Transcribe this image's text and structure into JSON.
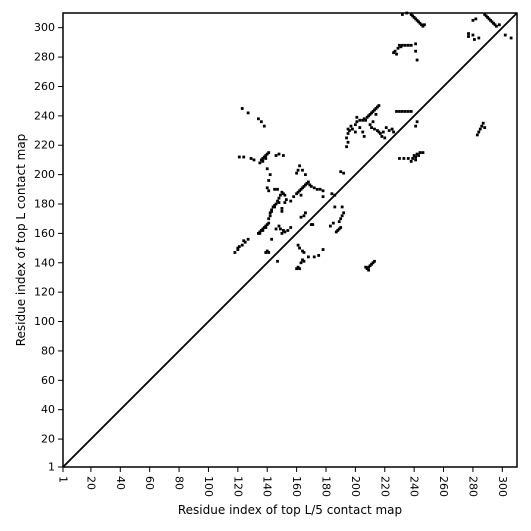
{
  "chart_data": {
    "type": "scatter",
    "xlabel": "Residue index of top L/5 contact map",
    "ylabel": "Residue index of top L contact map",
    "xlim": [
      1,
      310
    ],
    "ylim": [
      1,
      310
    ],
    "x_ticks": [
      1,
      20,
      40,
      60,
      80,
      100,
      120,
      140,
      160,
      180,
      200,
      220,
      240,
      260,
      280,
      300
    ],
    "y_ticks": [
      1,
      20,
      40,
      60,
      80,
      100,
      120,
      140,
      160,
      180,
      200,
      220,
      240,
      260,
      280,
      300
    ],
    "x_tick_labels": [
      "1",
      "20",
      "40",
      "60",
      "80",
      "100",
      "120",
      "140",
      "160",
      "180",
      "200",
      "220",
      "240",
      "260",
      "280",
      "300"
    ],
    "y_tick_labels": [
      "1",
      "20",
      "40",
      "60",
      "80",
      "100",
      "120",
      "140",
      "160",
      "180",
      "200",
      "220",
      "240",
      "260",
      "280",
      "300"
    ],
    "x_tick_rotation": "vertical",
    "diagonal": [
      [
        1,
        1
      ],
      [
        310,
        310
      ]
    ],
    "grid": false,
    "marker_color": "#000000",
    "series": [
      {
        "values": [
          [
            134,
            160
          ],
          [
            135,
            161
          ],
          [
            136,
            162
          ],
          [
            137,
            163
          ],
          [
            138,
            164
          ],
          [
            139,
            165
          ],
          [
            140,
            166
          ],
          [
            139,
            164
          ],
          [
            137,
            162
          ],
          [
            135,
            160
          ],
          [
            141,
            167
          ],
          [
            141,
            170
          ],
          [
            142,
            172
          ],
          [
            142,
            174
          ],
          [
            143,
            176
          ],
          [
            144,
            178
          ],
          [
            145,
            179
          ],
          [
            146,
            180
          ],
          [
            145,
            178
          ],
          [
            143,
            175
          ],
          [
            147,
            182
          ],
          [
            148,
            184
          ],
          [
            149,
            186
          ],
          [
            150,
            188
          ],
          [
            151,
            187
          ],
          [
            152,
            186
          ],
          [
            136,
            210
          ],
          [
            137,
            211
          ],
          [
            138,
            212
          ],
          [
            139,
            213
          ],
          [
            140,
            214
          ],
          [
            141,
            215
          ],
          [
            137,
            209
          ],
          [
            135,
            208
          ],
          [
            139,
            211
          ],
          [
            141,
            196
          ],
          [
            142,
            200
          ],
          [
            140,
            204
          ],
          [
            140,
            191
          ],
          [
            141,
            189
          ],
          [
            147,
            190
          ],
          [
            145,
            190
          ],
          [
            150,
            177
          ],
          [
            148,
            181
          ],
          [
            160,
            187
          ],
          [
            161,
            188
          ],
          [
            162,
            189
          ],
          [
            163,
            190
          ],
          [
            164,
            191
          ],
          [
            165,
            192
          ],
          [
            166,
            193
          ],
          [
            167,
            194
          ],
          [
            168,
            195
          ],
          [
            169,
            193
          ],
          [
            170,
            192
          ],
          [
            172,
            191
          ],
          [
            174,
            190
          ],
          [
            176,
            190
          ],
          [
            178,
            189
          ],
          [
            178,
            185
          ],
          [
            163,
            186
          ],
          [
            152,
            161
          ],
          [
            151,
            162
          ],
          [
            150,
            160
          ],
          [
            149,
            163
          ],
          [
            146,
            163
          ],
          [
            143,
            156
          ],
          [
            147,
            141
          ],
          [
            141,
            147
          ],
          [
            140,
            148
          ],
          [
            139,
            147
          ],
          [
            118,
            147
          ],
          [
            120,
            150
          ],
          [
            121,
            151
          ],
          [
            123,
            152
          ],
          [
            125,
            154
          ],
          [
            127,
            156
          ],
          [
            124,
            155
          ],
          [
            120,
            149
          ],
          [
            160,
            136
          ],
          [
            161,
            137
          ],
          [
            162,
            136
          ],
          [
            163,
            140
          ],
          [
            164,
            142
          ],
          [
            165,
            141
          ],
          [
            168,
            144
          ],
          [
            172,
            144
          ],
          [
            175,
            145
          ],
          [
            178,
            149
          ],
          [
            161,
            152
          ],
          [
            162,
            150
          ],
          [
            164,
            148
          ],
          [
            165,
            147
          ],
          [
            163,
            171
          ],
          [
            165,
            172
          ],
          [
            166,
            174
          ],
          [
            170,
            166
          ],
          [
            171,
            166
          ],
          [
            187,
            161
          ],
          [
            188,
            162
          ],
          [
            189,
            163
          ],
          [
            190,
            164
          ],
          [
            189,
            168
          ],
          [
            190,
            170
          ],
          [
            191,
            172
          ],
          [
            192,
            174
          ],
          [
            191,
            178
          ],
          [
            190,
            202
          ],
          [
            192,
            201
          ],
          [
            194,
            219
          ],
          [
            195,
            222
          ],
          [
            194,
            225
          ],
          [
            195,
            228
          ],
          [
            196,
            230
          ],
          [
            195,
            231
          ],
          [
            197,
            233
          ],
          [
            200,
            234
          ],
          [
            201,
            236
          ],
          [
            203,
            237
          ],
          [
            205,
            237
          ],
          [
            206,
            238
          ],
          [
            207,
            237
          ],
          [
            208,
            239
          ],
          [
            209,
            240
          ],
          [
            210,
            241
          ],
          [
            211,
            242
          ],
          [
            212,
            243
          ],
          [
            213,
            244
          ],
          [
            214,
            245
          ],
          [
            215,
            246
          ],
          [
            216,
            247
          ],
          [
            214,
            241
          ],
          [
            212,
            236
          ],
          [
            210,
            234
          ],
          [
            211,
            232
          ],
          [
            213,
            231
          ],
          [
            215,
            230
          ],
          [
            217,
            228
          ],
          [
            218,
            226
          ],
          [
            220,
            225
          ],
          [
            216,
            229
          ],
          [
            219,
            229
          ],
          [
            208,
            136
          ],
          [
            209,
            137
          ],
          [
            210,
            138
          ],
          [
            211,
            139
          ],
          [
            212,
            140
          ],
          [
            213,
            141
          ],
          [
            207,
            137
          ],
          [
            209,
            135
          ],
          [
            228,
            243
          ],
          [
            230,
            243
          ],
          [
            232,
            243
          ],
          [
            234,
            243
          ],
          [
            236,
            243
          ],
          [
            238,
            243
          ],
          [
            226,
            283
          ],
          [
            227,
            284
          ],
          [
            228,
            282
          ],
          [
            229,
            286
          ],
          [
            230,
            288
          ],
          [
            231,
            287
          ],
          [
            232,
            288
          ],
          [
            234,
            288
          ],
          [
            236,
            288
          ],
          [
            238,
            288
          ],
          [
            241,
            289
          ],
          [
            241,
            284
          ],
          [
            242,
            278
          ],
          [
            230,
            211
          ],
          [
            233,
            211
          ],
          [
            236,
            211
          ],
          [
            239,
            211
          ],
          [
            240,
            213
          ],
          [
            241,
            212
          ],
          [
            242,
            214
          ],
          [
            243,
            213
          ],
          [
            244,
            215
          ],
          [
            246,
            215
          ],
          [
            241,
            210
          ],
          [
            238,
            209
          ],
          [
            241,
            233
          ],
          [
            242,
            236
          ],
          [
            238,
            309
          ],
          [
            239,
            308
          ],
          [
            240,
            307
          ],
          [
            241,
            306
          ],
          [
            242,
            305
          ],
          [
            243,
            304
          ],
          [
            244,
            303
          ],
          [
            245,
            302
          ],
          [
            246,
            301
          ],
          [
            247,
            302
          ],
          [
            235,
            310
          ],
          [
            232,
            309
          ],
          [
            283,
            227
          ],
          [
            284,
            229
          ],
          [
            285,
            231
          ],
          [
            286,
            233
          ],
          [
            287,
            235
          ],
          [
            288,
            232
          ],
          [
            277,
            296
          ],
          [
            277,
            294
          ],
          [
            280,
            295
          ],
          [
            281,
            292
          ],
          [
            284,
            293
          ],
          [
            288,
            309
          ],
          [
            289,
            308
          ],
          [
            290,
            307
          ],
          [
            291,
            306
          ],
          [
            292,
            305
          ],
          [
            293,
            304
          ],
          [
            294,
            303
          ],
          [
            295,
            302
          ],
          [
            296,
            301
          ],
          [
            298,
            302
          ],
          [
            280,
            305
          ],
          [
            282,
            306
          ],
          [
            302,
            295
          ],
          [
            306,
            293
          ],
          [
            123,
            245
          ],
          [
            127,
            242
          ],
          [
            129,
            211
          ],
          [
            131,
            210
          ],
          [
            134,
            238
          ],
          [
            136,
            236
          ],
          [
            138,
            233
          ],
          [
            146,
            213
          ],
          [
            148,
            214
          ],
          [
            151,
            213
          ],
          [
            154,
            162
          ],
          [
            156,
            164
          ],
          [
            121,
            212
          ],
          [
            124,
            212
          ],
          [
            148,
            165
          ],
          [
            150,
            175
          ],
          [
            152,
            181
          ],
          [
            153,
            183
          ],
          [
            156,
            182
          ],
          [
            158,
            185
          ],
          [
            160,
            201
          ],
          [
            161,
            203
          ],
          [
            162,
            206
          ],
          [
            164,
            203
          ],
          [
            166,
            200
          ],
          [
            184,
            187
          ],
          [
            186,
            186
          ],
          [
            186,
            178
          ],
          [
            185,
            167
          ],
          [
            183,
            165
          ],
          [
            198,
            231
          ],
          [
            200,
            229
          ],
          [
            203,
            232
          ],
          [
            205,
            229
          ],
          [
            206,
            226
          ],
          [
            201,
            239
          ],
          [
            221,
            232
          ],
          [
            223,
            230
          ],
          [
            225,
            231
          ],
          [
            226,
            229
          ]
        ]
      }
    ]
  }
}
